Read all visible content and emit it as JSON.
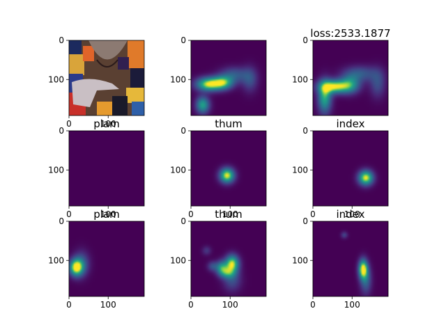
{
  "figure": {
    "colormap": "viridis",
    "colors": {
      "background": "#ffffff",
      "viridis_low": "#440154",
      "viridis_mid": "#21918c",
      "viridis_high": "#fde725",
      "axis": "#000000"
    },
    "grid": false,
    "legend": "none"
  },
  "chart_data": [
    {
      "type": "image",
      "title": "",
      "content": "photo of person in colorful patterned top with hand raised",
      "xlim": [
        0,
        192
      ],
      "ylim": [
        192,
        0
      ],
      "xticks": [
        "0",
        "100"
      ],
      "yticks": [
        "0",
        "100"
      ]
    },
    {
      "type": "heatmap",
      "title": "",
      "xlim": [
        0,
        192
      ],
      "ylim": [
        192,
        0
      ],
      "xticks": [],
      "yticks": [
        "0",
        "100"
      ],
      "blobs": [
        {
          "x": 45,
          "y": 112,
          "sx": 22,
          "sy": 12,
          "amp": 0.95
        },
        {
          "x": 82,
          "y": 108,
          "sx": 18,
          "sy": 12,
          "amp": 0.75
        },
        {
          "x": 30,
          "y": 165,
          "sx": 12,
          "sy": 15,
          "amp": 0.7
        },
        {
          "x": 110,
          "y": 88,
          "sx": 25,
          "sy": 14,
          "amp": 0.35
        },
        {
          "x": 150,
          "y": 100,
          "sx": 14,
          "sy": 22,
          "amp": 0.3
        }
      ]
    },
    {
      "type": "heatmap",
      "title": "loss:2533.1877",
      "xlim": [
        0,
        192
      ],
      "ylim": [
        192,
        0
      ],
      "xticks": [],
      "yticks": [
        "0",
        "100"
      ],
      "blobs": [
        {
          "x": 55,
          "y": 118,
          "sx": 26,
          "sy": 12,
          "amp": 0.95
        },
        {
          "x": 30,
          "y": 145,
          "sx": 12,
          "sy": 28,
          "amp": 0.75
        },
        {
          "x": 95,
          "y": 112,
          "sx": 18,
          "sy": 16,
          "amp": 0.55
        },
        {
          "x": 120,
          "y": 85,
          "sx": 30,
          "sy": 14,
          "amp": 0.35
        },
        {
          "x": 165,
          "y": 110,
          "sx": 14,
          "sy": 25,
          "amp": 0.3
        }
      ]
    },
    {
      "type": "heatmap",
      "title": "plam",
      "xlim": [
        0,
        192
      ],
      "ylim": [
        192,
        0
      ],
      "xticks": [
        "0",
        "100"
      ],
      "yticks": [
        "0",
        "100"
      ],
      "blobs": []
    },
    {
      "type": "heatmap",
      "title": "thum",
      "xlim": [
        0,
        192
      ],
      "ylim": [
        192,
        0
      ],
      "xticks": [
        "0",
        "100"
      ],
      "yticks": [
        "0",
        "100"
      ],
      "blobs": [
        {
          "x": 92,
          "y": 114,
          "sx": 13,
          "sy": 13,
          "amp": 1.0
        }
      ]
    },
    {
      "type": "heatmap",
      "title": "index",
      "xlim": [
        0,
        192
      ],
      "ylim": [
        192,
        0
      ],
      "xticks": [
        "0",
        "100"
      ],
      "yticks": [
        "0",
        "100"
      ],
      "blobs": [
        {
          "x": 135,
          "y": 120,
          "sx": 13,
          "sy": 13,
          "amp": 1.0
        }
      ]
    },
    {
      "type": "heatmap",
      "title": "plam",
      "xlim": [
        0,
        192
      ],
      "ylim": [
        192,
        0
      ],
      "xticks": [
        "0",
        "100"
      ],
      "yticks": [
        "0",
        "100"
      ],
      "blobs": [
        {
          "x": 18,
          "y": 118,
          "sx": 12,
          "sy": 15,
          "amp": 1.0
        },
        {
          "x": 32,
          "y": 108,
          "sx": 14,
          "sy": 22,
          "amp": 0.35
        }
      ]
    },
    {
      "type": "heatmap",
      "title": "thum",
      "xlim": [
        0,
        192
      ],
      "ylim": [
        192,
        0
      ],
      "xticks": [
        "0",
        "100"
      ],
      "yticks": [
        "0",
        "100"
      ],
      "blobs": [
        {
          "x": 105,
          "y": 108,
          "sx": 12,
          "sy": 15,
          "amp": 0.95
        },
        {
          "x": 78,
          "y": 118,
          "sx": 10,
          "sy": 12,
          "amp": 0.6
        },
        {
          "x": 92,
          "y": 132,
          "sx": 14,
          "sy": 10,
          "amp": 0.5
        },
        {
          "x": 105,
          "y": 150,
          "sx": 16,
          "sy": 20,
          "amp": 0.3
        },
        {
          "x": 40,
          "y": 75,
          "sx": 8,
          "sy": 8,
          "amp": 0.2
        },
        {
          "x": 55,
          "y": 115,
          "sx": 9,
          "sy": 9,
          "amp": 0.3
        }
      ]
    },
    {
      "type": "heatmap",
      "title": "index",
      "xlim": [
        0,
        192
      ],
      "ylim": [
        192,
        0
      ],
      "xticks": [
        "0",
        "100"
      ],
      "yticks": [
        "0",
        "100"
      ],
      "blobs": [
        {
          "x": 128,
          "y": 122,
          "sx": 8,
          "sy": 17,
          "amp": 1.0
        },
        {
          "x": 135,
          "y": 150,
          "sx": 10,
          "sy": 25,
          "amp": 0.4
        },
        {
          "x": 80,
          "y": 35,
          "sx": 6,
          "sy": 6,
          "amp": 0.25
        }
      ]
    }
  ]
}
